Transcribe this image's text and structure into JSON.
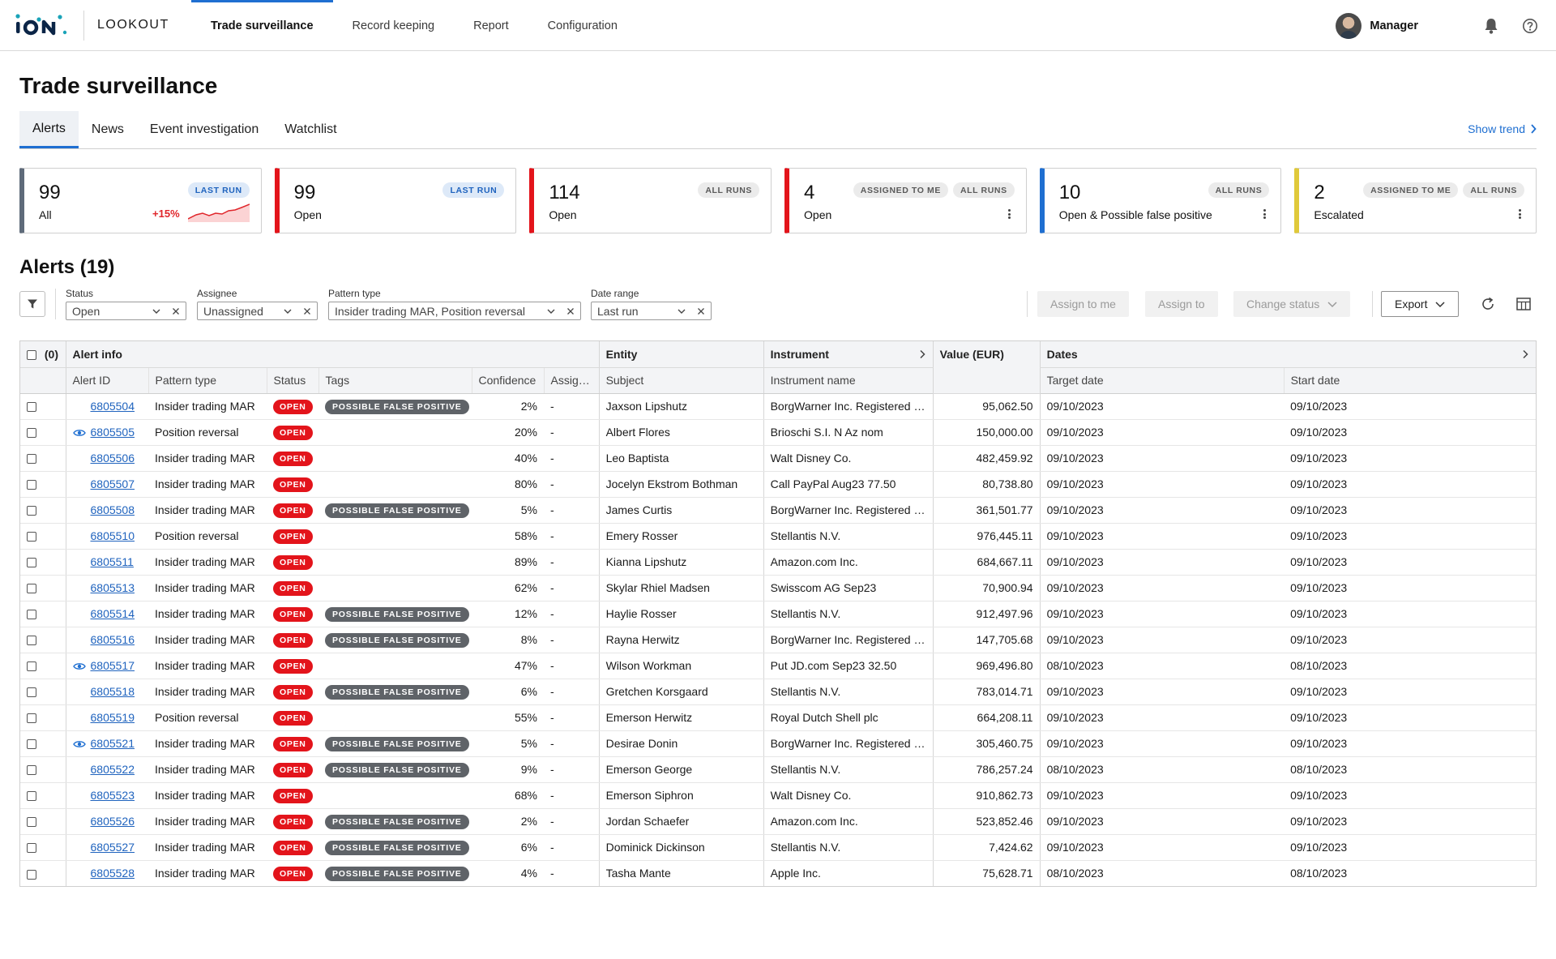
{
  "app": {
    "logo_text": "iON",
    "name": "LOOKOUT"
  },
  "topnav": [
    {
      "label": "Trade surveillance",
      "active": true
    },
    {
      "label": "Record keeping",
      "active": false
    },
    {
      "label": "Report",
      "active": false
    },
    {
      "label": "Configuration",
      "active": false
    }
  ],
  "user": {
    "name": "Manager",
    "icons": [
      "avatar",
      "bell-icon",
      "help-icon"
    ]
  },
  "page": {
    "title": "Trade surveillance"
  },
  "subtabs": [
    {
      "label": "Alerts",
      "active": true
    },
    {
      "label": "News",
      "active": false
    },
    {
      "label": "Event investigation",
      "active": false
    },
    {
      "label": "Watchlist",
      "active": false
    }
  ],
  "show_trend": "Show trend",
  "cards": [
    {
      "value": "99",
      "label": "All",
      "badges": [
        "LAST RUN"
      ],
      "badge_style": "blue",
      "accent": "#5f6b7a",
      "trend": "+15%",
      "sparkline": true,
      "menu": false
    },
    {
      "value": "99",
      "label": "Open",
      "badges": [
        "LAST RUN"
      ],
      "badge_style": "blue",
      "accent": "#e3141b",
      "trend": "",
      "sparkline": false,
      "menu": false
    },
    {
      "value": "114",
      "label": "Open",
      "badges": [
        "ALL RUNS"
      ],
      "badge_style": "grey",
      "accent": "#e3141b",
      "trend": "",
      "sparkline": false,
      "menu": false
    },
    {
      "value": "4",
      "label": "Open",
      "badges": [
        "ASSIGNED TO ME",
        "ALL RUNS"
      ],
      "badge_style": "grey",
      "accent": "#e3141b",
      "trend": "",
      "sparkline": false,
      "menu": true
    },
    {
      "value": "10",
      "label": "Open & Possible false positive",
      "badges": [
        "ALL RUNS"
      ],
      "badge_style": "grey",
      "accent": "#1f6fd1",
      "trend": "",
      "sparkline": false,
      "menu": true
    },
    {
      "value": "2",
      "label": "Escalated",
      "badges": [
        "ASSIGNED TO ME",
        "ALL RUNS"
      ],
      "badge_style": "grey",
      "accent": "#e0c93a",
      "trend": "",
      "sparkline": false,
      "menu": true
    }
  ],
  "alerts": {
    "title": "Alerts (19)"
  },
  "filters": [
    {
      "label": "Status",
      "value": "Open"
    },
    {
      "label": "Assignee",
      "value": "Unassigned"
    },
    {
      "label": "Pattern type",
      "value": "Insider trading MAR, Position reversal"
    },
    {
      "label": "Date range",
      "value": "Last run"
    }
  ],
  "actions": {
    "assign_to_me": "Assign to me",
    "assign_to": "Assign to",
    "change_status": "Change status",
    "export": "Export"
  },
  "table": {
    "selected_count": "(0)",
    "groups": {
      "alert_info": "Alert info",
      "entity": "Entity",
      "instrument": "Instrument",
      "value": "Value (EUR)",
      "dates": "Dates"
    },
    "columns": {
      "alert_id": "Alert ID",
      "pattern_type": "Pattern type",
      "status": "Status",
      "tags": "Tags",
      "confidence": "Confidence",
      "assignee": "Assignee",
      "subject": "Subject",
      "instrument_name": "Instrument name",
      "target_date": "Target date",
      "start_date": "Start date"
    },
    "rows": [
      {
        "watched": false,
        "id": "6805504",
        "pattern": "Insider trading MAR",
        "status": "OPEN",
        "tag": "POSSIBLE FALSE POSITIVE",
        "confidence": "2%",
        "assignee": "-",
        "subject": "Jaxson Lipshutz",
        "instrument": "BorgWarner Inc. Registered Shares",
        "value": "95,062.50",
        "target": "09/10/2023",
        "start": "09/10/2023"
      },
      {
        "watched": true,
        "id": "6805505",
        "pattern": "Position reversal",
        "status": "OPEN",
        "tag": "",
        "confidence": "20%",
        "assignee": "-",
        "subject": "Albert Flores",
        "instrument": "Brioschi S.I. N Az nom",
        "value": "150,000.00",
        "target": "09/10/2023",
        "start": "09/10/2023"
      },
      {
        "watched": false,
        "id": "6805506",
        "pattern": "Insider trading MAR",
        "status": "OPEN",
        "tag": "",
        "confidence": "40%",
        "assignee": "-",
        "subject": "Leo Baptista",
        "instrument": "Walt Disney Co.",
        "value": "482,459.92",
        "target": "09/10/2023",
        "start": "09/10/2023"
      },
      {
        "watched": false,
        "id": "6805507",
        "pattern": "Insider trading MAR",
        "status": "OPEN",
        "tag": "",
        "confidence": "80%",
        "assignee": "-",
        "subject": "Jocelyn Ekstrom Bothman",
        "instrument": "Call PayPal Aug23 77.50",
        "value": "80,738.80",
        "target": "09/10/2023",
        "start": "09/10/2023"
      },
      {
        "watched": false,
        "id": "6805508",
        "pattern": "Insider trading MAR",
        "status": "OPEN",
        "tag": "POSSIBLE FALSE POSITIVE",
        "confidence": "5%",
        "assignee": "-",
        "subject": "James Curtis",
        "instrument": "BorgWarner Inc. Registered Shares",
        "value": "361,501.77",
        "target": "09/10/2023",
        "start": "09/10/2023"
      },
      {
        "watched": false,
        "id": "6805510",
        "pattern": "Position reversal",
        "status": "OPEN",
        "tag": "",
        "confidence": "58%",
        "assignee": "-",
        "subject": "Emery Rosser",
        "instrument": "Stellantis N.V.",
        "value": "976,445.11",
        "target": "09/10/2023",
        "start": "09/10/2023"
      },
      {
        "watched": false,
        "id": "6805511",
        "pattern": "Insider trading MAR",
        "status": "OPEN",
        "tag": "",
        "confidence": "89%",
        "assignee": "-",
        "subject": "Kianna Lipshutz",
        "instrument": "Amazon.com Inc.",
        "value": "684,667.11",
        "target": "09/10/2023",
        "start": "09/10/2023"
      },
      {
        "watched": false,
        "id": "6805513",
        "pattern": "Insider trading MAR",
        "status": "OPEN",
        "tag": "",
        "confidence": "62%",
        "assignee": "-",
        "subject": "Skylar Rhiel Madsen",
        "instrument": "Swisscom AG Sep23",
        "value": "70,900.94",
        "target": "09/10/2023",
        "start": "09/10/2023"
      },
      {
        "watched": false,
        "id": "6805514",
        "pattern": "Insider trading MAR",
        "status": "OPEN",
        "tag": "POSSIBLE FALSE POSITIVE",
        "confidence": "12%",
        "assignee": "-",
        "subject": "Haylie Rosser",
        "instrument": "Stellantis N.V.",
        "value": "912,497.96",
        "target": "09/10/2023",
        "start": "09/10/2023"
      },
      {
        "watched": false,
        "id": "6805516",
        "pattern": "Insider trading MAR",
        "status": "OPEN",
        "tag": "POSSIBLE FALSE POSITIVE",
        "confidence": "8%",
        "assignee": "-",
        "subject": "Rayna Herwitz",
        "instrument": "BorgWarner Inc. Registered Shares",
        "value": "147,705.68",
        "target": "09/10/2023",
        "start": "09/10/2023"
      },
      {
        "watched": true,
        "id": "6805517",
        "pattern": "Insider trading MAR",
        "status": "OPEN",
        "tag": "",
        "confidence": "47%",
        "assignee": "-",
        "subject": "Wilson Workman",
        "instrument": "Put JD.com Sep23 32.50",
        "value": "969,496.80",
        "target": "08/10/2023",
        "start": "08/10/2023"
      },
      {
        "watched": false,
        "id": "6805518",
        "pattern": "Insider trading MAR",
        "status": "OPEN",
        "tag": "POSSIBLE FALSE POSITIVE",
        "confidence": "6%",
        "assignee": "-",
        "subject": "Gretchen Korsgaard",
        "instrument": "Stellantis N.V.",
        "value": "783,014.71",
        "target": "09/10/2023",
        "start": "09/10/2023"
      },
      {
        "watched": false,
        "id": "6805519",
        "pattern": "Position reversal",
        "status": "OPEN",
        "tag": "",
        "confidence": "55%",
        "assignee": "-",
        "subject": "Emerson Herwitz",
        "instrument": "Royal Dutch Shell plc",
        "value": "664,208.11",
        "target": "09/10/2023",
        "start": "09/10/2023"
      },
      {
        "watched": true,
        "id": "6805521",
        "pattern": "Insider trading MAR",
        "status": "OPEN",
        "tag": "POSSIBLE FALSE POSITIVE",
        "confidence": "5%",
        "assignee": "-",
        "subject": "Desirae Donin",
        "instrument": "BorgWarner Inc. Registered Shares",
        "value": "305,460.75",
        "target": "09/10/2023",
        "start": "09/10/2023"
      },
      {
        "watched": false,
        "id": "6805522",
        "pattern": "Insider trading MAR",
        "status": "OPEN",
        "tag": "POSSIBLE FALSE POSITIVE",
        "confidence": "9%",
        "assignee": "-",
        "subject": "Emerson George",
        "instrument": "Stellantis N.V.",
        "value": "786,257.24",
        "target": "08/10/2023",
        "start": "08/10/2023"
      },
      {
        "watched": false,
        "id": "6805523",
        "pattern": "Insider trading MAR",
        "status": "OPEN",
        "tag": "",
        "confidence": "68%",
        "assignee": "-",
        "subject": "Emerson Siphron",
        "instrument": "Walt Disney Co.",
        "value": "910,862.73",
        "target": "09/10/2023",
        "start": "09/10/2023"
      },
      {
        "watched": false,
        "id": "6805526",
        "pattern": "Insider trading MAR",
        "status": "OPEN",
        "tag": "POSSIBLE FALSE POSITIVE",
        "confidence": "2%",
        "assignee": "-",
        "subject": "Jordan Schaefer",
        "instrument": "Amazon.com Inc.",
        "value": "523,852.46",
        "target": "09/10/2023",
        "start": "09/10/2023"
      },
      {
        "watched": false,
        "id": "6805527",
        "pattern": "Insider trading MAR",
        "status": "OPEN",
        "tag": "POSSIBLE FALSE POSITIVE",
        "confidence": "6%",
        "assignee": "-",
        "subject": "Dominick Dickinson",
        "instrument": "Stellantis N.V.",
        "value": "7,424.62",
        "target": "09/10/2023",
        "start": "09/10/2023"
      },
      {
        "watched": false,
        "id": "6805528",
        "pattern": "Insider trading MAR",
        "status": "OPEN",
        "tag": "POSSIBLE FALSE POSITIVE",
        "confidence": "4%",
        "assignee": "-",
        "subject": "Tasha Mante",
        "instrument": "Apple Inc.",
        "value": "75,628.71",
        "target": "08/10/2023",
        "start": "08/10/2023"
      }
    ]
  }
}
